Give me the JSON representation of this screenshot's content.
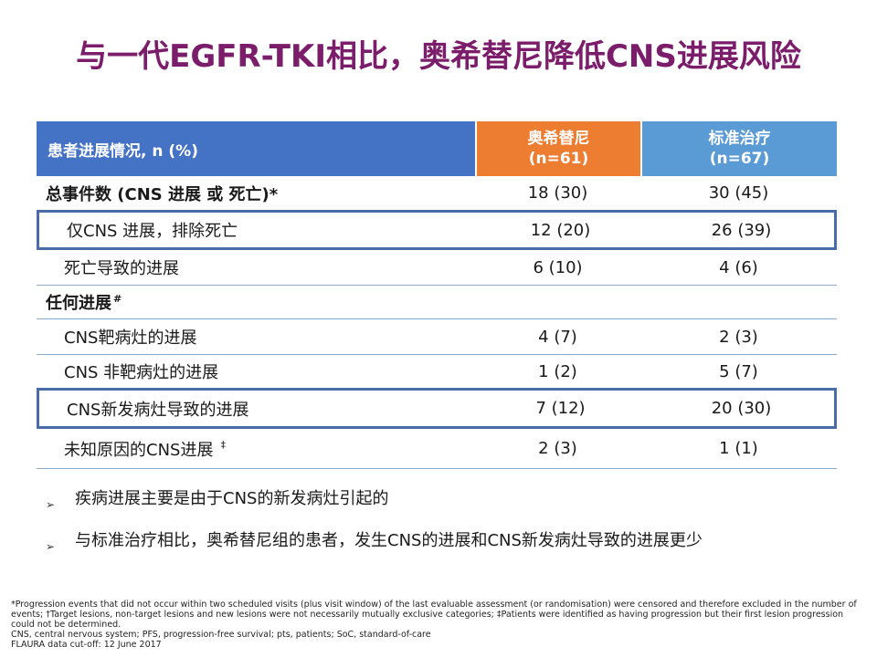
{
  "title": "与一代EGFR-TKI相比，奥希替尼降低CNS进展风险",
  "table": {
    "header": {
      "label": "患者进展情况, n (%)",
      "col1_line1": "奥希替尼",
      "col1_line2": "(n=61)",
      "col2_line1": "标准治疗",
      "col2_line2": "(n=67)"
    },
    "rows": [
      {
        "label": "总事件数 (CNS 进展 或 死亡)*",
        "v1": "18 (30)",
        "v2": "30 (45)"
      },
      {
        "label": "仅CNS 进展，排除死亡",
        "v1": "12 (20)",
        "v2": "26 (39)"
      },
      {
        "label": "死亡导致的进展",
        "v1": "6 (10)",
        "v2": "4 (6)"
      },
      {
        "label": "任何进展",
        "mark": "#",
        "v1": "",
        "v2": ""
      },
      {
        "label": "CNS靶病灶的进展",
        "v1": "4 (7)",
        "v2": "2 (3)"
      },
      {
        "label": "CNS 非靶病灶的进展",
        "v1": "1 (2)",
        "v2": "5 (7)"
      },
      {
        "label": "CNS新发病灶导致的进展",
        "v1": "7 (12)",
        "v2": "20 (30)"
      },
      {
        "label": "未知原因的CNS进展",
        "mark": "‡",
        "v1": "2 (3)",
        "v2": "1 (1)"
      }
    ]
  },
  "bullets": [
    "疾病进展主要是由于CNS的新发病灶引起的",
    "与标准治疗相比，奥希替尼组的患者，发生CNS的进展和CNS新发病灶导致的进展更少"
  ],
  "bullet_glyph": "➢",
  "footnotes": [
    "*Progression events that did not occur within two scheduled visits (plus visit window) of the last evaluable assessment (or randomisation) were censored and therefore excluded in the number of events; †Target lesions, non-target lesions and new lesions were not necessarily mutually exclusive categories; ‡Patients were identified as having progression but their first lesion progression could not be determined.",
    "CNS, central nervous system; PFS, progression-free survival; pts, patients; SoC, standard-of-care",
    "FLAURA data cut-off: 12 June 2017"
  ],
  "colors": {
    "title": "#7b1d6a",
    "header_blue": "#4472c4",
    "header_orange": "#ed7d31",
    "header_lightblue": "#5b9bd5",
    "box_border": "#4a6aa8"
  }
}
